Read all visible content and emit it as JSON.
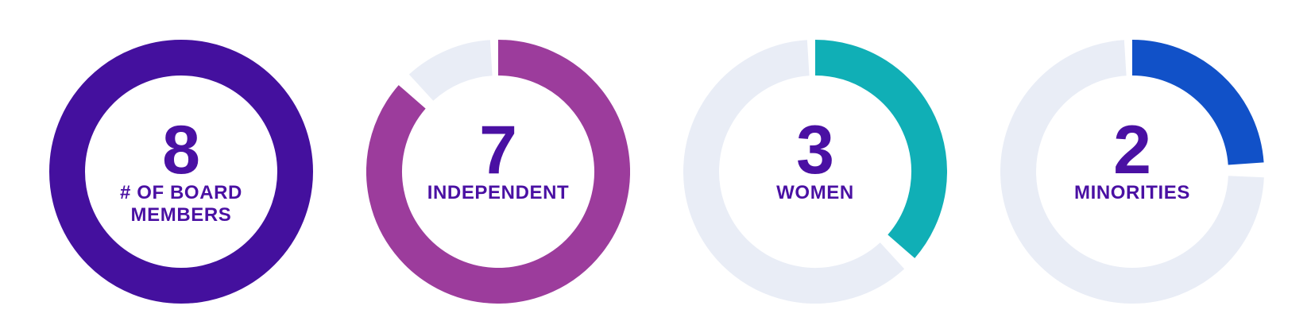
{
  "page": {
    "background": "#FFFFFF"
  },
  "chart_data": {
    "type": "donut",
    "total": 8,
    "track_color": "#E9EDF6",
    "text_color": "#4A10A3",
    "start_angle_deg": 0,
    "direction": "clockwise",
    "donuts": [
      {
        "value": 8,
        "label_lines": [
          "# OF BOARD",
          "MEMBERS"
        ],
        "color": "#44109E"
      },
      {
        "value": 7,
        "label_lines": [
          "INDEPENDENT"
        ],
        "color": "#9C3C9C"
      },
      {
        "value": 3,
        "label_lines": [
          "WOMEN"
        ],
        "color": "#10AFB6"
      },
      {
        "value": 2,
        "label_lines": [
          "MINORITIES"
        ],
        "color": "#1151C8"
      }
    ]
  }
}
